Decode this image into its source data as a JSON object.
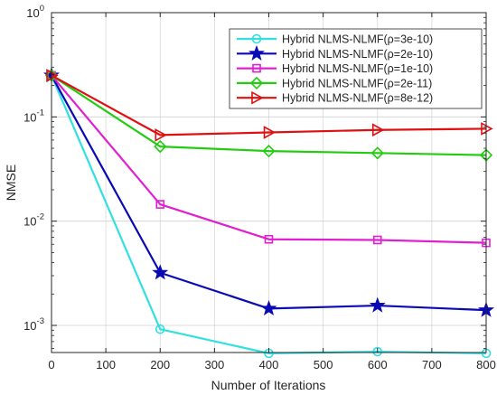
{
  "chart_data": {
    "type": "line",
    "xlabel": "Number of Iterations",
    "ylabel": "NMSE",
    "xlim": [
      0,
      800
    ],
    "ylim_log10": [
      -3.26,
      0
    ],
    "yscale": "log",
    "grid": true,
    "legend_position": "top-right",
    "x": [
      0,
      200,
      400,
      600,
      800
    ],
    "x_tick_labels": [
      "0",
      "100",
      "200",
      "300",
      "400",
      "500",
      "600",
      "700",
      "800"
    ],
    "x_ticks": [
      0,
      100,
      200,
      300,
      400,
      500,
      600,
      700,
      800
    ],
    "y_ticks": [
      {
        "value": 1,
        "base": "10",
        "exp": "0"
      },
      {
        "value": 0.1,
        "base": "10",
        "exp": "-1"
      },
      {
        "value": 0.01,
        "base": "10",
        "exp": "-2"
      },
      {
        "value": 0.001,
        "base": "10",
        "exp": "-3"
      }
    ],
    "series": [
      {
        "name": "Hybrid NLMS-NLMF(ρ=3e-10)",
        "color": "#33e0e0",
        "marker": "circle",
        "values": [
          0.25,
          0.00092,
          0.00054,
          0.00056,
          0.00054
        ]
      },
      {
        "name": "Hybrid NLMS-NLMF(ρ=2e-10)",
        "color": "#0a0ab5",
        "marker": "star",
        "values": [
          0.25,
          0.0032,
          0.00145,
          0.00155,
          0.0014
        ]
      },
      {
        "name": "Hybrid NLMS-NLMF(ρ=1e-10)",
        "color": "#e020d0",
        "marker": "square",
        "values": [
          0.25,
          0.0145,
          0.0067,
          0.0066,
          0.0062
        ]
      },
      {
        "name": "Hybrid NLMS-NLMF(ρ=2e-11)",
        "color": "#22cc10",
        "marker": "diamond",
        "values": [
          0.25,
          0.052,
          0.047,
          0.045,
          0.043
        ]
      },
      {
        "name": "Hybrid NLMS-NLMF(ρ=8e-12)",
        "color": "#e01010",
        "marker": "triangle-right",
        "values": [
          0.25,
          0.067,
          0.071,
          0.075,
          0.077
        ]
      }
    ]
  }
}
